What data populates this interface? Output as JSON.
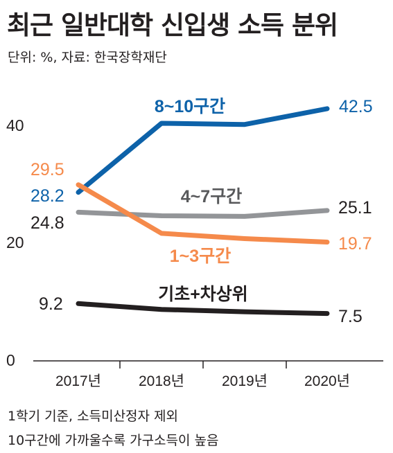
{
  "header": {
    "title": "최근 일반대학 신입생 소득 분위",
    "subtitle": "단위: %, 자료: 한국장학재단"
  },
  "footnotes": [
    "1학기 기준, 소득미산정자 제외",
    "10구간에 가까울수록 가구소득이 높음"
  ],
  "chart_data": {
    "type": "line",
    "title": "최근 일반대학 신입생 소득 분위",
    "x": [
      "2017년",
      "2018년",
      "2019년",
      "2020년"
    ],
    "y_ticks": [
      "0",
      "20",
      "40"
    ],
    "ylim": [
      0,
      45
    ],
    "grid": false,
    "series": [
      {
        "name": "8~10구간",
        "color": "#0d62a9",
        "values": [
          28.2,
          40.0,
          39.8,
          42.5
        ],
        "start_label": "28.2",
        "end_label": "42.5"
      },
      {
        "name": "4~7구간",
        "color": "#939598",
        "values": [
          24.8,
          24.2,
          24.1,
          25.1
        ],
        "start_label": "24.8",
        "end_label": "25.1"
      },
      {
        "name": "1~3구간",
        "color": "#f58a4b",
        "values": [
          29.5,
          21.2,
          20.3,
          19.7
        ],
        "start_label": "29.5",
        "end_label": "19.7"
      },
      {
        "name": "기초+차상위",
        "color": "#231f20",
        "values": [
          9.2,
          8.2,
          7.8,
          7.5
        ],
        "start_label": "9.2",
        "end_label": "7.5"
      }
    ]
  }
}
